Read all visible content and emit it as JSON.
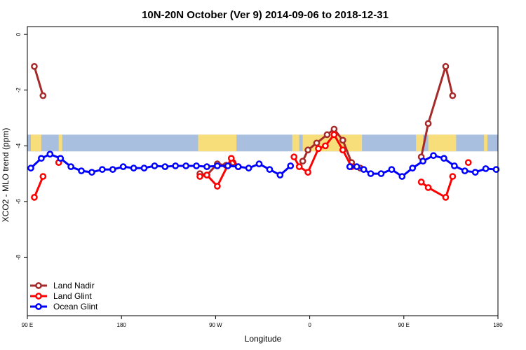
{
  "chart_data": {
    "type": "line",
    "title": "10N-20N October (Ver 9)   2014-09-06 to 2018-12-31",
    "xlabel": "Longitude",
    "ylabel": "XCO2 - MLO trend (ppm)",
    "xlim": [
      -90,
      180
    ],
    "ylim": [
      0,
      -10
    ],
    "x_ticks": [
      {
        "value": -90,
        "label": "90 E"
      },
      {
        "value": -36,
        "label": "180"
      },
      {
        "value": 18,
        "label": "90 W"
      },
      {
        "value": 72,
        "label": "0"
      },
      {
        "value": 126,
        "label": "90 E"
      },
      {
        "value": 180,
        "label": "180"
      }
    ],
    "y_ticks": [
      {
        "value": 0,
        "label": "0"
      },
      {
        "value": -2,
        "label": "-2"
      },
      {
        "value": -4,
        "label": "-4"
      },
      {
        "value": -6,
        "label": "-6"
      },
      {
        "value": -8,
        "label": "-8"
      }
    ],
    "legend_position": "bottom-left",
    "grid": false,
    "map_band": {
      "y_range": [
        -3.6,
        -4.2
      ],
      "ocean_color": "#a8bfe0",
      "land_color": "#f7de7b"
    },
    "series": [
      {
        "name": "Land Nadir",
        "color": "#a52a2a",
        "segments": [
          [
            [
              -86,
              -1.15
            ],
            [
              -81,
              -2.2
            ]
          ],
          [
            [
              9,
              -5.0
            ],
            [
              13,
              -5.05
            ],
            [
              19,
              -4.65
            ],
            [
              24,
              -4.7
            ],
            [
              28,
              -4.6
            ],
            [
              31,
              -4.75
            ]
          ],
          [
            [
              68,
              -4.55
            ],
            [
              71,
              -4.15
            ],
            [
              76,
              -3.9
            ],
            [
              82,
              -3.6
            ],
            [
              86,
              -3.4
            ],
            [
              91,
              -3.8
            ],
            [
              96,
              -4.6
            ],
            [
              101,
              -4.8
            ]
          ],
          [
            [
              136,
              -4.4
            ],
            [
              140,
              -3.2
            ],
            [
              150,
              -1.15
            ],
            [
              154,
              -2.2
            ]
          ]
        ]
      },
      {
        "name": "Land Glint",
        "color": "#ff0000",
        "segments": [
          [
            [
              -86,
              -5.85
            ],
            [
              -81,
              -5.1
            ]
          ],
          [
            [
              -72,
              -4.6
            ]
          ],
          [
            [
              9,
              -5.1
            ],
            [
              13,
              -5.05
            ],
            [
              19,
              -5.45
            ],
            [
              27,
              -4.45
            ],
            [
              31,
              -4.75
            ]
          ],
          [
            [
              63,
              -4.4
            ],
            [
              66,
              -4.75
            ],
            [
              71,
              -4.95
            ],
            [
              77,
              -4.1
            ],
            [
              81,
              -4.0
            ],
            [
              86,
              -3.6
            ],
            [
              91,
              -4.15
            ],
            [
              96,
              -4.75
            ]
          ],
          [
            [
              136,
              -5.3
            ],
            [
              140,
              -5.5
            ],
            [
              150,
              -5.85
            ],
            [
              154,
              -5.1
            ]
          ],
          [
            [
              163,
              -4.6
            ]
          ]
        ]
      },
      {
        "name": "Ocean Glint",
        "color": "#0000ff",
        "segments": [
          [
            [
              -88,
              -4.8
            ],
            [
              -82,
              -4.45
            ],
            [
              -77,
              -4.3
            ],
            [
              -71,
              -4.45
            ],
            [
              -65,
              -4.75
            ],
            [
              -59,
              -4.9
            ],
            [
              -53,
              -4.95
            ],
            [
              -47,
              -4.85
            ],
            [
              -41,
              -4.85
            ],
            [
              -35,
              -4.75
            ],
            [
              -29,
              -4.8
            ],
            [
              -23,
              -4.8
            ],
            [
              -17,
              -4.72
            ],
            [
              -11,
              -4.75
            ],
            [
              -5,
              -4.72
            ],
            [
              1,
              -4.72
            ],
            [
              7,
              -4.72
            ],
            [
              13,
              -4.75
            ],
            [
              19,
              -4.72
            ],
            [
              25,
              -4.72
            ],
            [
              31,
              -4.75
            ],
            [
              37,
              -4.8
            ],
            [
              43,
              -4.65
            ],
            [
              49,
              -4.85
            ],
            [
              55,
              -5.05
            ],
            [
              61,
              -4.72
            ]
          ],
          [
            [
              95,
              -4.75
            ],
            [
              99,
              -4.75
            ],
            [
              103,
              -4.85
            ],
            [
              107,
              -5.0
            ],
            [
              113,
              -5.0
            ],
            [
              119,
              -4.85
            ],
            [
              125,
              -5.1
            ],
            [
              131,
              -4.8
            ],
            [
              137,
              -4.55
            ],
            [
              143,
              -4.35
            ],
            [
              149,
              -4.45
            ],
            [
              155,
              -4.72
            ],
            [
              161,
              -4.9
            ],
            [
              167,
              -4.95
            ],
            [
              173,
              -4.82
            ],
            [
              179,
              -4.85
            ]
          ]
        ]
      }
    ]
  }
}
